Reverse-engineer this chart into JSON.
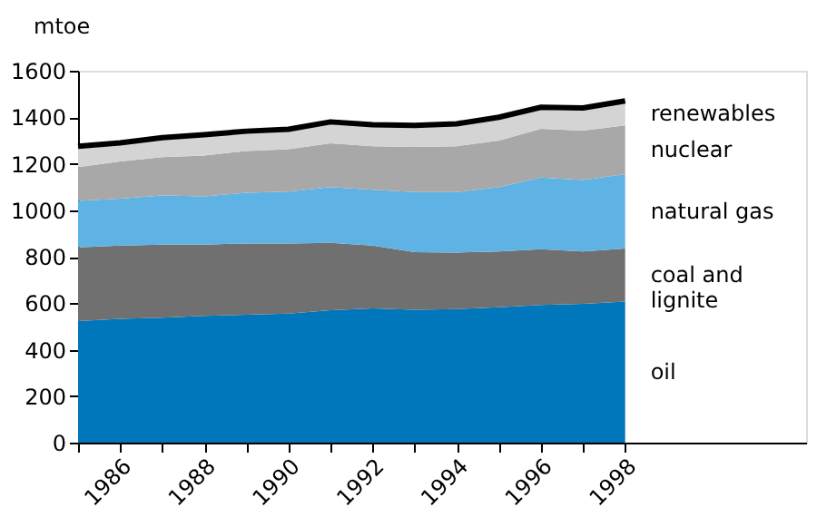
{
  "chart_data": {
    "type": "area",
    "stacked": true,
    "ylabel": "mtoe",
    "x": [
      1985,
      1986,
      1987,
      1988,
      1989,
      1990,
      1991,
      1992,
      1993,
      1994,
      1995,
      1996,
      1997,
      1998
    ],
    "xlim": [
      1985,
      2002.3
    ],
    "xticks": [
      {
        "value": 1985,
        "label": null
      },
      1986,
      {
        "value": 1987,
        "label": null
      },
      1988,
      {
        "value": 1989,
        "label": null
      },
      1990,
      {
        "value": 1991,
        "label": null
      },
      1992,
      {
        "value": 1993,
        "label": null
      },
      1994,
      {
        "value": 1995,
        "label": null
      },
      1996,
      {
        "value": 1997,
        "label": null
      },
      1998
    ],
    "ylim": [
      0,
      1600
    ],
    "yticks": [
      0,
      200,
      400,
      600,
      800,
      1000,
      1200,
      1400,
      1600
    ],
    "grid": false,
    "series": [
      {
        "name": "oil",
        "color": "#0077bb",
        "values": [
          523,
          533,
          538,
          545,
          550,
          555,
          570,
          578,
          572,
          575,
          582,
          592,
          597,
          607
        ]
      },
      {
        "name": "coal and lignite",
        "color": "#707070",
        "values": [
          317,
          315,
          314,
          307,
          307,
          302,
          290,
          270,
          248,
          243,
          240,
          240,
          225,
          228
        ]
      },
      {
        "name": "natural gas",
        "color": "#5eb3e4",
        "values": [
          200,
          202,
          211,
          208,
          218,
          223,
          240,
          240,
          258,
          260,
          278,
          308,
          308,
          320
        ]
      },
      {
        "name": "nuclear",
        "color": "#a8a8a8",
        "values": [
          145,
          160,
          165,
          175,
          180,
          182,
          188,
          187,
          194,
          197,
          200,
          210,
          212,
          210
        ]
      },
      {
        "name": "renewables",
        "color": "#d4d4d4",
        "values": [
          90,
          80,
          84,
          90,
          85,
          86,
          92,
          93,
          93,
          97,
          100,
          93,
          98,
          105
        ]
      }
    ]
  }
}
